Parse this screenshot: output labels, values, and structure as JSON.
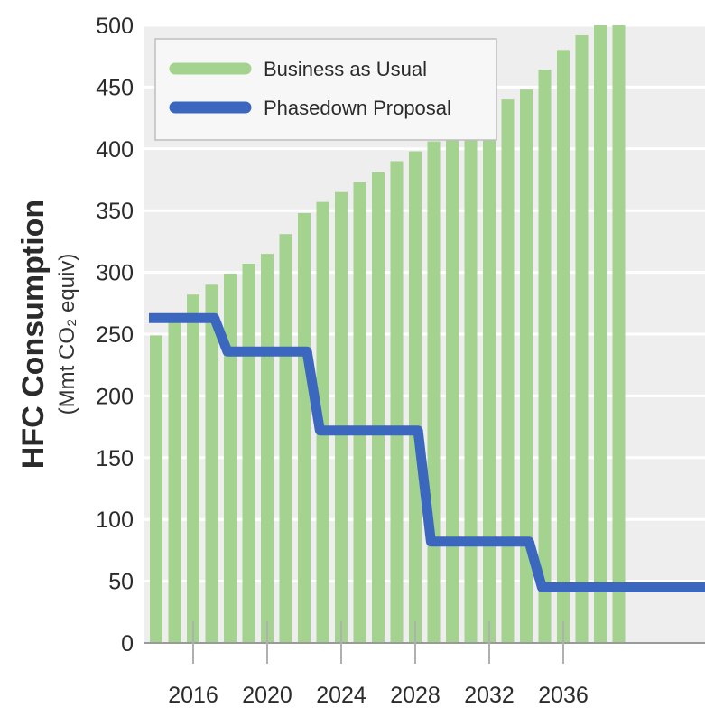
{
  "chart_data": {
    "type": "bar",
    "ylabel": "HFC Consumption",
    "ylabel_unit": "(Mmt CO₂ equiv)",
    "ylim": [
      0,
      500
    ],
    "yticks": [
      0,
      50,
      100,
      150,
      200,
      250,
      300,
      350,
      400,
      450,
      500
    ],
    "xtick_labels": [
      "2016",
      "2020",
      "2024",
      "2028",
      "2032",
      "2036"
    ],
    "grid": true,
    "legend_position": "top-left",
    "categories": [
      2014,
      2015,
      2016,
      2017,
      2018,
      2019,
      2020,
      2021,
      2022,
      2023,
      2024,
      2025,
      2026,
      2027,
      2028,
      2029,
      2030,
      2031,
      2032,
      2033,
      2034,
      2035,
      2036,
      2037,
      2038,
      2039
    ],
    "series": [
      {
        "name": "Business as Usual",
        "type": "bar",
        "color": "#a3d38f",
        "values": [
          249,
          260,
          282,
          290,
          299,
          307,
          315,
          331,
          348,
          357,
          365,
          373,
          381,
          390,
          398,
          406,
          414,
          423,
          431,
          440,
          448,
          464,
          480,
          492,
          500,
          508
        ]
      },
      {
        "name": "Phasedown Proposal",
        "type": "step-line",
        "color": "#3b67bf",
        "values": [
          263,
          263,
          263,
          263,
          236,
          236,
          236,
          236,
          236,
          172,
          172,
          172,
          172,
          172,
          172,
          82,
          82,
          82,
          82,
          82,
          82,
          45,
          45,
          45,
          45,
          45
        ]
      }
    ]
  },
  "colors": {
    "plot_background": "#eeeeee",
    "grid": "#ffffff",
    "legend_box": "#f7f7f7"
  }
}
